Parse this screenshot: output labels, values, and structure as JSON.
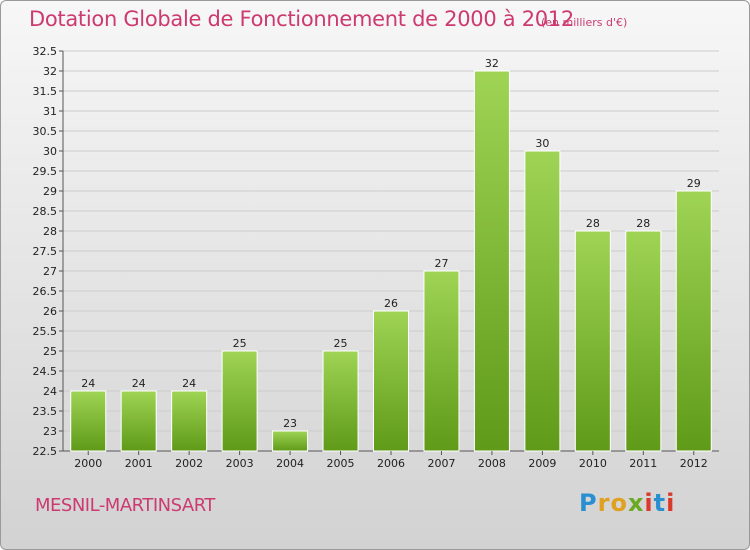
{
  "header": {
    "title": "Dotation Globale de Fonctionnement de 2000 à 2012",
    "unit": "(en milliers d'€)"
  },
  "footer": {
    "commune": "MESNIL-MARTINSART",
    "logo": [
      "P",
      "r",
      "o",
      "x",
      "i",
      "t",
      "i"
    ]
  },
  "colors": {
    "title": "#cc3a70",
    "bar_top": "#9fd455",
    "bar_bottom": "#5f9a18",
    "grid": "#cccccc"
  },
  "chart_data": {
    "type": "bar",
    "title": "Dotation Globale de Fonctionnement de 2000 à 2012",
    "subtitle": "(en milliers d'€)",
    "xlabel": "",
    "ylabel": "",
    "categories": [
      "2000",
      "2001",
      "2002",
      "2003",
      "2004",
      "2005",
      "2006",
      "2007",
      "2008",
      "2009",
      "2010",
      "2011",
      "2012"
    ],
    "values": [
      24,
      24,
      24,
      25,
      23,
      25,
      26,
      27,
      32,
      30,
      28,
      28,
      29
    ],
    "ylim": [
      22.5,
      32.5
    ],
    "yticks": [
      "22.5",
      "23",
      "23.5",
      "24",
      "24.5",
      "25",
      "25.5",
      "26",
      "26.5",
      "27",
      "27.5",
      "28",
      "28.5",
      "29",
      "29.5",
      "30",
      "30.5",
      "31",
      "31.5",
      "32",
      "32.5"
    ],
    "grid": true,
    "legend": "none"
  }
}
